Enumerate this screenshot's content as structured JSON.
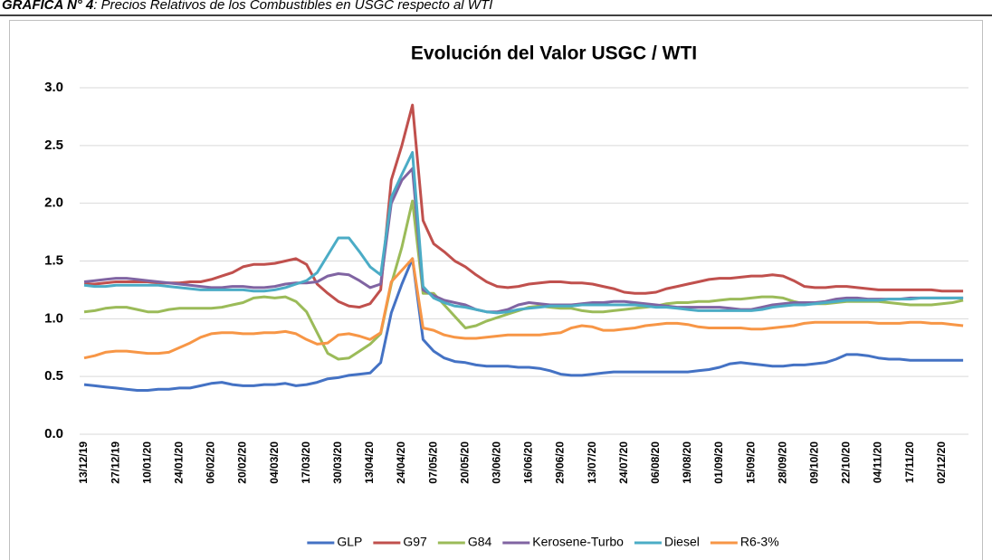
{
  "caption": {
    "label": "GRAFICA N° 4",
    "text": ": Precios Relativos de los Combustibles en USGC respecto al WTI"
  },
  "chart_data": {
    "type": "line",
    "title": "Evolución del Valor USGC / WTI",
    "categories": [
      "13/12/19",
      null,
      null,
      "27/12/19",
      null,
      null,
      "10/01/20",
      null,
      null,
      "24/01/20",
      null,
      null,
      "06/02/20",
      null,
      null,
      "20/02/20",
      null,
      null,
      "04/03/20",
      null,
      null,
      "17/03/20",
      null,
      null,
      "30/03/20",
      null,
      null,
      "13/04/20",
      null,
      null,
      "24/04/20",
      null,
      null,
      "07/05/20",
      null,
      null,
      "20/05/20",
      null,
      null,
      "03/06/20",
      null,
      null,
      "16/06/20",
      null,
      null,
      "29/06/20",
      null,
      null,
      "13/07/20",
      null,
      null,
      "24/07/20",
      null,
      null,
      "06/08/20",
      null,
      null,
      "19/08/20",
      null,
      null,
      "01/09/20",
      null,
      null,
      "15/09/20",
      null,
      null,
      "28/09/20",
      null,
      null,
      "09/10/20",
      null,
      null,
      "22/10/20",
      null,
      null,
      "04/11/20",
      null,
      null,
      "17/11/20",
      null,
      null,
      "02/12/20",
      null,
      null
    ],
    "ylim": [
      0,
      3
    ],
    "yticks": [
      {
        "value": 0,
        "label": "0.0"
      },
      0.5,
      {
        "value": 1,
        "label": "1.0"
      },
      1.5,
      {
        "value": 2,
        "label": "2.0"
      },
      2.5,
      {
        "value": 3,
        "label": "3.0"
      }
    ],
    "grid": true,
    "legend": "bottom",
    "series": [
      {
        "name": "GLP",
        "color": "#4472c4",
        "values": [
          0.43,
          0.42,
          0.41,
          0.4,
          0.39,
          0.38,
          0.38,
          0.39,
          0.39,
          0.4,
          0.4,
          0.42,
          0.44,
          0.45,
          0.43,
          0.42,
          0.42,
          0.43,
          0.43,
          0.44,
          0.42,
          0.43,
          0.45,
          0.48,
          0.49,
          0.51,
          0.52,
          0.53,
          0.62,
          1.05,
          1.3,
          1.52,
          0.82,
          0.72,
          0.66,
          0.63,
          0.62,
          0.6,
          0.59,
          0.59,
          0.59,
          0.58,
          0.58,
          0.57,
          0.55,
          0.52,
          0.51,
          0.51,
          0.52,
          0.53,
          0.54,
          0.54,
          0.54,
          0.54,
          0.54,
          0.54,
          0.54,
          0.54,
          0.55,
          0.56,
          0.58,
          0.61,
          0.62,
          0.61,
          0.6,
          0.59,
          0.59,
          0.6,
          0.6,
          0.61,
          0.62,
          0.65,
          0.69,
          0.69,
          0.68,
          0.66,
          0.65,
          0.65,
          0.64,
          0.64,
          0.64,
          0.64,
          0.64,
          0.64
        ]
      },
      {
        "name": "G97",
        "color": "#c0504d",
        "values": [
          1.3,
          1.3,
          1.31,
          1.32,
          1.32,
          1.32,
          1.32,
          1.31,
          1.31,
          1.31,
          1.32,
          1.32,
          1.34,
          1.37,
          1.4,
          1.45,
          1.47,
          1.47,
          1.48,
          1.5,
          1.52,
          1.47,
          1.3,
          1.22,
          1.15,
          1.11,
          1.1,
          1.13,
          1.25,
          2.2,
          2.5,
          2.85,
          1.85,
          1.65,
          1.58,
          1.5,
          1.45,
          1.38,
          1.32,
          1.28,
          1.27,
          1.28,
          1.3,
          1.31,
          1.32,
          1.32,
          1.31,
          1.31,
          1.3,
          1.28,
          1.26,
          1.23,
          1.22,
          1.22,
          1.23,
          1.26,
          1.28,
          1.3,
          1.32,
          1.34,
          1.35,
          1.35,
          1.36,
          1.37,
          1.37,
          1.38,
          1.37,
          1.33,
          1.28,
          1.27,
          1.27,
          1.28,
          1.28,
          1.27,
          1.26,
          1.25,
          1.25,
          1.25,
          1.25,
          1.25,
          1.25,
          1.24,
          1.24,
          1.24
        ]
      },
      {
        "name": "G84",
        "color": "#9bbb59",
        "values": [
          1.06,
          1.07,
          1.09,
          1.1,
          1.1,
          1.08,
          1.06,
          1.06,
          1.08,
          1.09,
          1.09,
          1.09,
          1.09,
          1.1,
          1.12,
          1.14,
          1.18,
          1.19,
          1.18,
          1.19,
          1.15,
          1.06,
          0.88,
          0.7,
          0.65,
          0.66,
          0.72,
          0.78,
          0.87,
          1.3,
          1.62,
          2.02,
          1.22,
          1.22,
          1.12,
          1.02,
          0.92,
          0.94,
          0.98,
          1.01,
          1.04,
          1.07,
          1.1,
          1.11,
          1.1,
          1.09,
          1.09,
          1.07,
          1.06,
          1.06,
          1.07,
          1.08,
          1.09,
          1.1,
          1.11,
          1.13,
          1.14,
          1.14,
          1.15,
          1.15,
          1.16,
          1.17,
          1.17,
          1.18,
          1.19,
          1.19,
          1.18,
          1.15,
          1.13,
          1.13,
          1.13,
          1.14,
          1.15,
          1.15,
          1.15,
          1.15,
          1.14,
          1.13,
          1.12,
          1.12,
          1.12,
          1.13,
          1.14,
          1.16
        ]
      },
      {
        "name": "Kerosene-Turbo",
        "color": "#8064a2",
        "values": [
          1.32,
          1.33,
          1.34,
          1.35,
          1.35,
          1.34,
          1.33,
          1.32,
          1.31,
          1.3,
          1.29,
          1.28,
          1.27,
          1.27,
          1.28,
          1.28,
          1.27,
          1.27,
          1.28,
          1.3,
          1.31,
          1.31,
          1.32,
          1.37,
          1.39,
          1.38,
          1.33,
          1.27,
          1.3,
          2.0,
          2.2,
          2.3,
          1.25,
          1.2,
          1.16,
          1.14,
          1.12,
          1.08,
          1.06,
          1.06,
          1.08,
          1.12,
          1.14,
          1.13,
          1.12,
          1.12,
          1.12,
          1.13,
          1.14,
          1.14,
          1.15,
          1.15,
          1.14,
          1.13,
          1.12,
          1.11,
          1.1,
          1.1,
          1.1,
          1.1,
          1.1,
          1.09,
          1.08,
          1.08,
          1.1,
          1.12,
          1.13,
          1.14,
          1.14,
          1.14,
          1.15,
          1.17,
          1.18,
          1.18,
          1.17,
          1.17,
          1.17,
          1.17,
          1.18,
          1.18,
          1.18,
          1.18,
          1.18,
          1.18
        ]
      },
      {
        "name": "Diesel",
        "color": "#4bacc6",
        "values": [
          1.29,
          1.28,
          1.28,
          1.29,
          1.29,
          1.29,
          1.29,
          1.29,
          1.28,
          1.27,
          1.26,
          1.25,
          1.25,
          1.25,
          1.25,
          1.25,
          1.24,
          1.24,
          1.25,
          1.27,
          1.3,
          1.33,
          1.4,
          1.55,
          1.7,
          1.7,
          1.58,
          1.45,
          1.38,
          2.05,
          2.25,
          2.44,
          1.28,
          1.18,
          1.14,
          1.11,
          1.1,
          1.08,
          1.06,
          1.05,
          1.06,
          1.08,
          1.09,
          1.1,
          1.11,
          1.11,
          1.11,
          1.12,
          1.12,
          1.12,
          1.12,
          1.12,
          1.12,
          1.11,
          1.1,
          1.1,
          1.09,
          1.08,
          1.07,
          1.07,
          1.07,
          1.07,
          1.07,
          1.07,
          1.08,
          1.1,
          1.11,
          1.12,
          1.12,
          1.13,
          1.14,
          1.15,
          1.16,
          1.16,
          1.16,
          1.16,
          1.17,
          1.17,
          1.17,
          1.18,
          1.18,
          1.18,
          1.18,
          1.18
        ]
      },
      {
        "name": "R6-3%",
        "color": "#f79646",
        "values": [
          0.66,
          0.68,
          0.71,
          0.72,
          0.72,
          0.71,
          0.7,
          0.7,
          0.71,
          0.75,
          0.79,
          0.84,
          0.87,
          0.88,
          0.88,
          0.87,
          0.87,
          0.88,
          0.88,
          0.89,
          0.87,
          0.82,
          0.78,
          0.79,
          0.86,
          0.87,
          0.85,
          0.82,
          0.88,
          1.32,
          1.42,
          1.52,
          0.92,
          0.9,
          0.86,
          0.84,
          0.83,
          0.83,
          0.84,
          0.85,
          0.86,
          0.86,
          0.86,
          0.86,
          0.87,
          0.88,
          0.92,
          0.94,
          0.93,
          0.9,
          0.9,
          0.91,
          0.92,
          0.94,
          0.95,
          0.96,
          0.96,
          0.95,
          0.93,
          0.92,
          0.92,
          0.92,
          0.92,
          0.91,
          0.91,
          0.92,
          0.93,
          0.94,
          0.96,
          0.97,
          0.97,
          0.97,
          0.97,
          0.97,
          0.97,
          0.96,
          0.96,
          0.96,
          0.97,
          0.97,
          0.96,
          0.96,
          0.95,
          0.94
        ]
      }
    ]
  }
}
